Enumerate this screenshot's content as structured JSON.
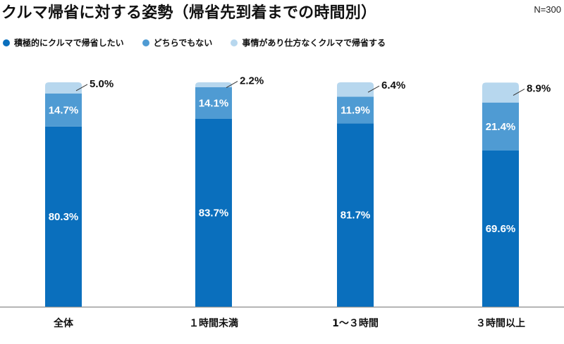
{
  "title": "クルマ帰省に対する姿勢（帰省先到着までの時間別）",
  "n_label": "N=300",
  "colors": {
    "series1": "#0a6fbd",
    "series2": "#4f9bd3",
    "series3": "#b7d7ee",
    "axis": "#9a9a9a",
    "text_light": "#ffffff",
    "text_dark": "#111111"
  },
  "chart_data": {
    "type": "bar",
    "stacked": true,
    "unit": "%",
    "ylim": [
      0,
      100
    ],
    "grid": false,
    "legend_position": "top-left",
    "categories": [
      "全体",
      "１時間未満",
      "1～３時間",
      "３時間以上"
    ],
    "series": [
      {
        "name": "積極的にクルマで帰省したい",
        "values": [
          80.3,
          83.7,
          81.7,
          69.6
        ],
        "labels": [
          "80.3%",
          "83.7%",
          "81.7%",
          "69.6%"
        ]
      },
      {
        "name": "どちらでもない",
        "values": [
          14.7,
          14.1,
          11.9,
          21.4
        ],
        "labels": [
          "14.7%",
          "14.1%",
          "11.9%",
          "21.4%"
        ]
      },
      {
        "name": "事情があり仕方なくクルマで帰省する",
        "values": [
          5.0,
          2.2,
          6.4,
          8.9
        ],
        "labels": [
          "5.0%",
          "2.2%",
          "6.4%",
          "8.9%"
        ]
      }
    ]
  }
}
